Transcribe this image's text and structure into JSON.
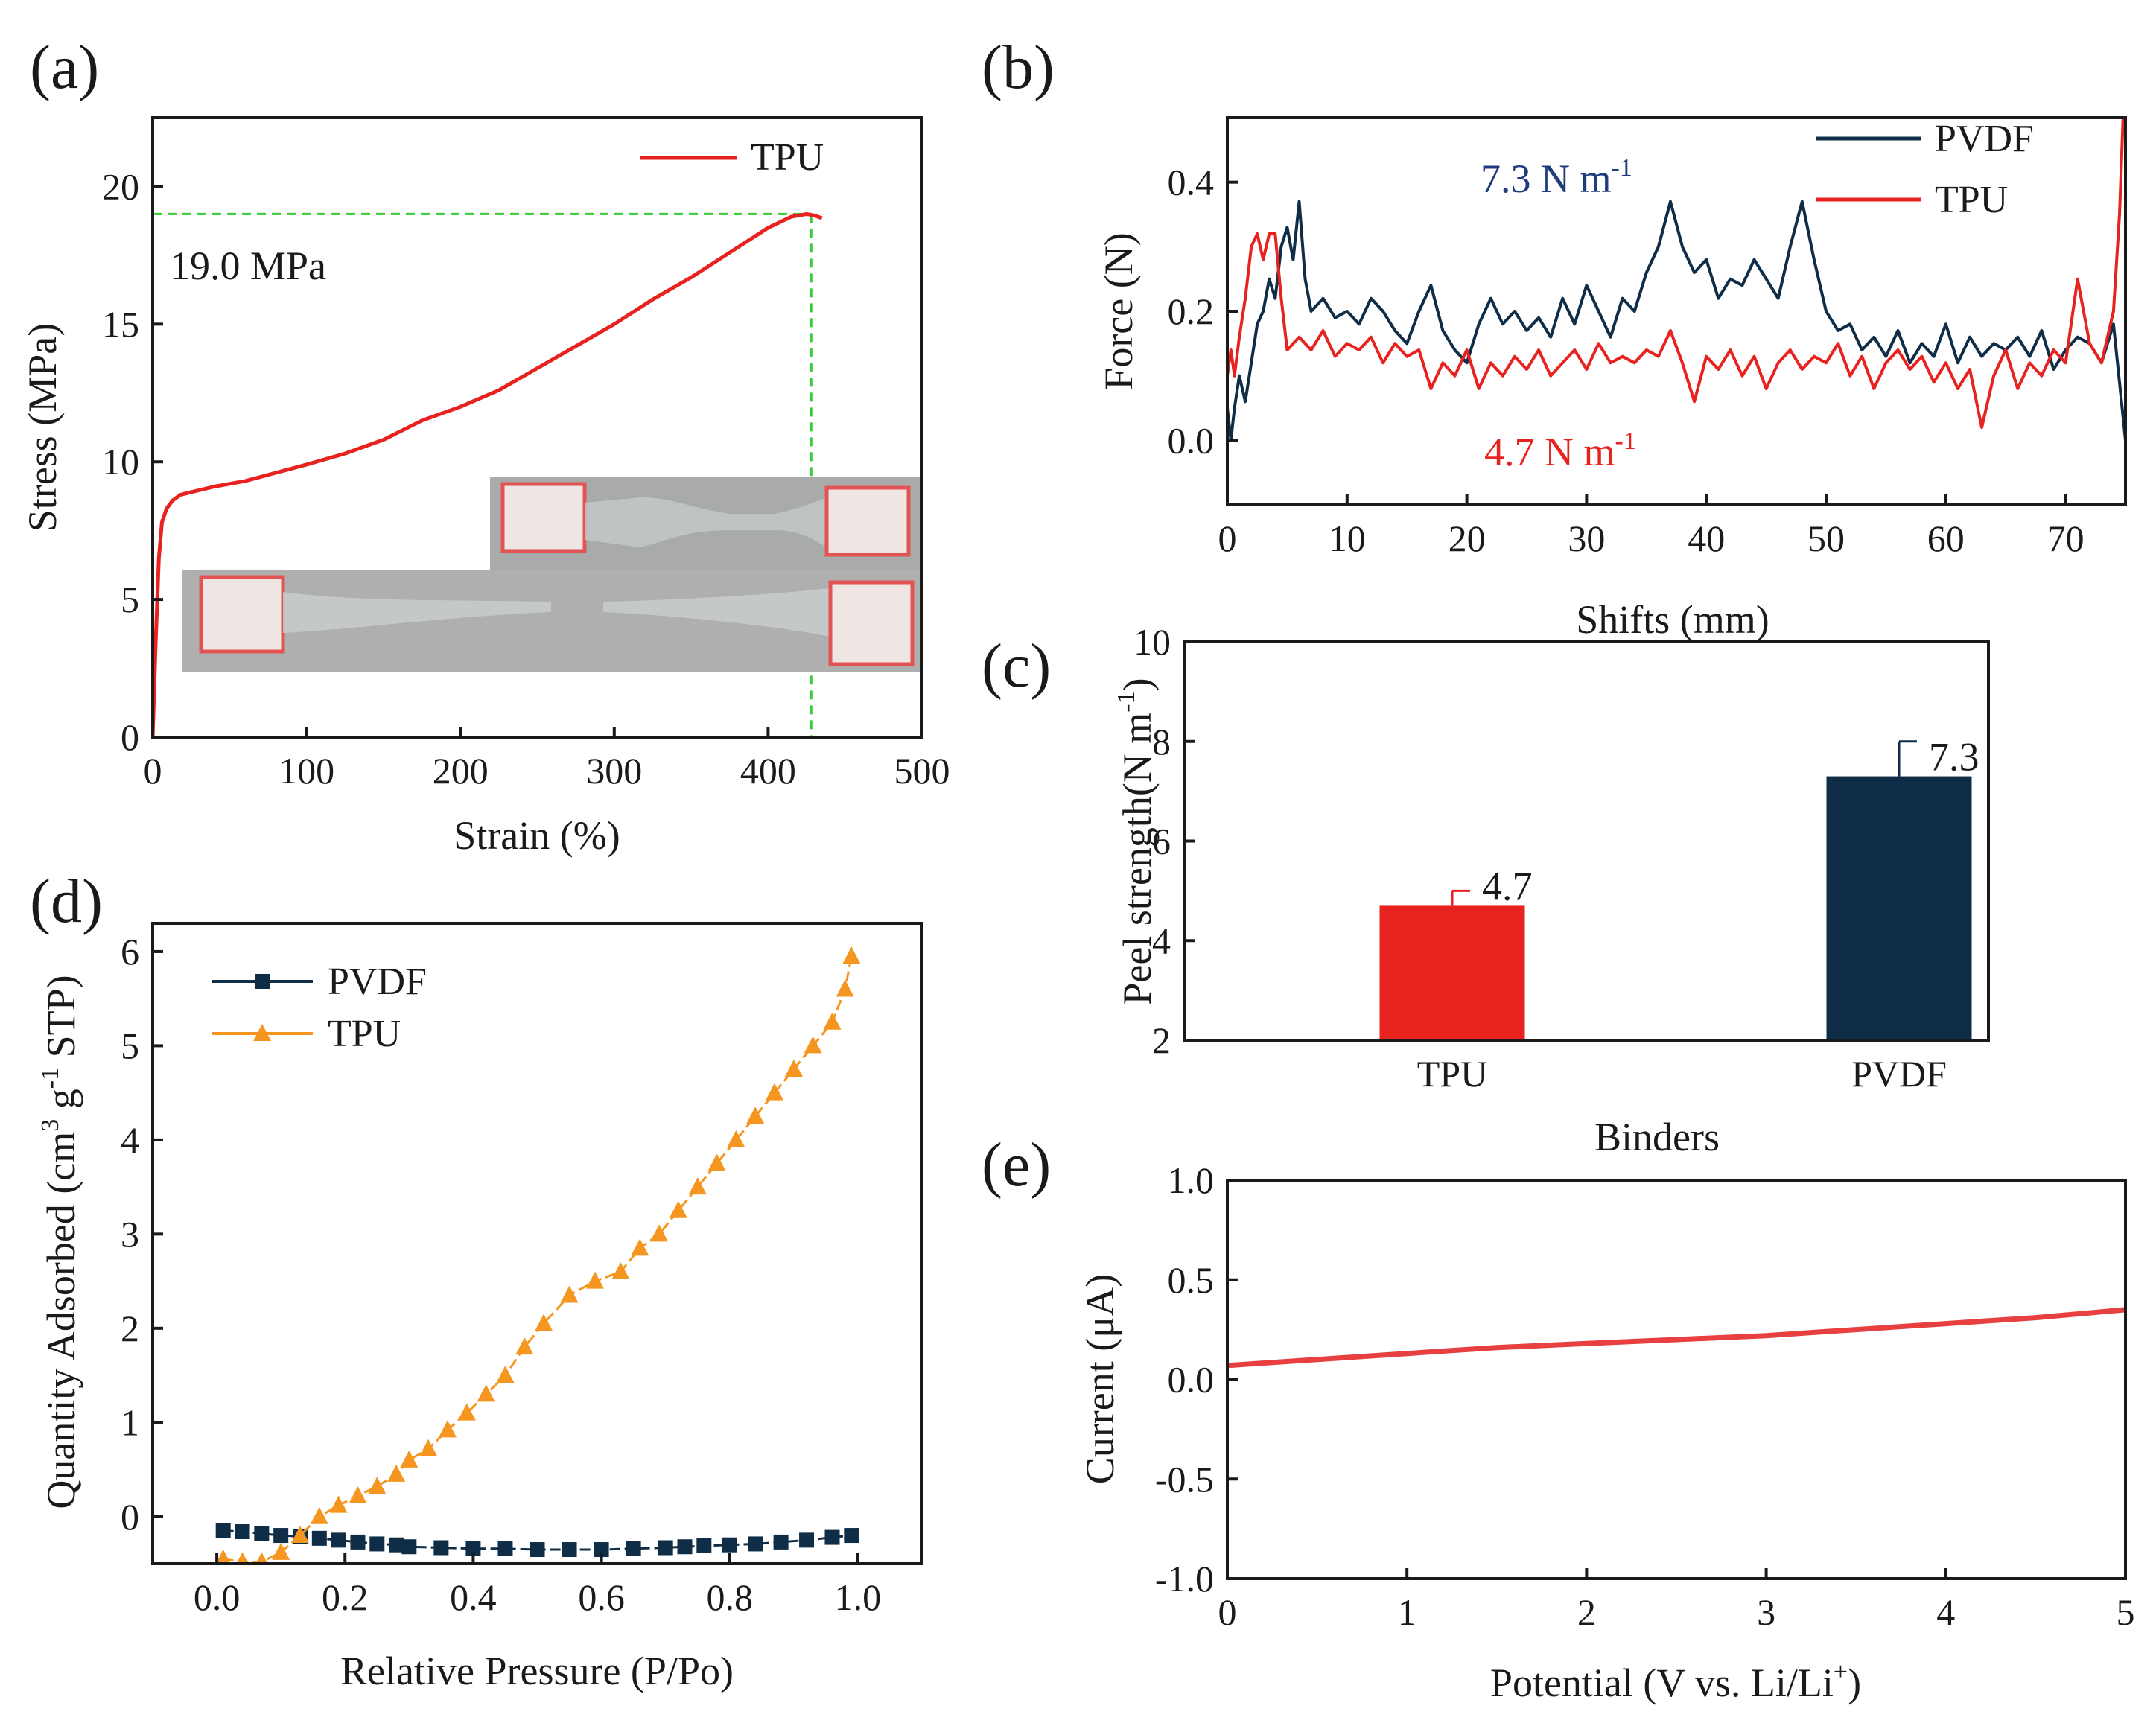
{
  "colors": {
    "red": "#e8231f",
    "navy": "#0f2d47",
    "orange": "#f4961f",
    "green": "#33cc33",
    "axis": "#1a1a1a"
  },
  "chart_data": [
    {
      "id": "a",
      "panel_label": "(a)",
      "type": "line",
      "xlabel": "Strain (%)",
      "ylabel": "Stress (MPa)",
      "xlim": [
        0,
        500
      ],
      "ylim": [
        0,
        22.5
      ],
      "xticks": [
        "0",
        "100",
        "200",
        "300",
        "400",
        "500"
      ],
      "yticks": [
        "0",
        "5",
        "10",
        "15",
        "20"
      ],
      "annotation": "19.0 MPa",
      "max_point": {
        "x": 428,
        "y": 19.0
      },
      "legend": [
        "TPU"
      ],
      "inset": "photographs of TPU tensile specimen before and after fracture",
      "series": [
        {
          "name": "TPU",
          "x": [
            0,
            2,
            4,
            6,
            9,
            13,
            18,
            25,
            40,
            60,
            80,
            100,
            125,
            150,
            175,
            200,
            225,
            250,
            275,
            300,
            325,
            350,
            375,
            400,
            415,
            425,
            430,
            435
          ],
          "y": [
            0,
            3.5,
            6.5,
            7.8,
            8.3,
            8.6,
            8.8,
            8.9,
            9.1,
            9.3,
            9.6,
            9.9,
            10.3,
            10.8,
            11.5,
            12.0,
            12.6,
            13.4,
            14.2,
            15.0,
            15.9,
            16.7,
            17.6,
            18.5,
            18.9,
            19.0,
            18.95,
            18.85
          ]
        }
      ]
    },
    {
      "id": "b",
      "panel_label": "(b)",
      "type": "line",
      "xlabel": "Shifts (mm)",
      "ylabel": "Force (N)",
      "xlim": [
        0,
        75
      ],
      "ylim": [
        -0.1,
        0.5
      ],
      "xticks": [
        "0",
        "10",
        "20",
        "30",
        "40",
        "50",
        "60",
        "70"
      ],
      "yticks": [
        "0.0",
        "0.2",
        "0.4"
      ],
      "legend": [
        "PVDF",
        "TPU"
      ],
      "annotations": [
        {
          "text": "7.3 N m",
          "sup": "-1",
          "series": "PVDF"
        },
        {
          "text": "4.7 N m",
          "sup": "-1",
          "series": "TPU"
        }
      ],
      "series": [
        {
          "name": "PVDF",
          "x": [
            0,
            0.3,
            0.6,
            1,
            1.5,
            2,
            2.5,
            3,
            3.5,
            4,
            4.5,
            5,
            5.5,
            6,
            6.5,
            7,
            8,
            9,
            10,
            11,
            12,
            13,
            14,
            15,
            16,
            17,
            18,
            19,
            20,
            21,
            22,
            23,
            24,
            25,
            26,
            27,
            28,
            29,
            30,
            31,
            32,
            33,
            34,
            35,
            36,
            37,
            38,
            39,
            40,
            41,
            42,
            43,
            44,
            45,
            46,
            47,
            48,
            49,
            50,
            51,
            52,
            53,
            54,
            55,
            56,
            57,
            58,
            59,
            60,
            61,
            62,
            63,
            64,
            65,
            66,
            67,
            68,
            69,
            70,
            71,
            72,
            73,
            74,
            75
          ],
          "y": [
            0.05,
            0.0,
            0.05,
            0.1,
            0.06,
            0.12,
            0.18,
            0.2,
            0.25,
            0.22,
            0.3,
            0.33,
            0.28,
            0.37,
            0.25,
            0.2,
            0.22,
            0.19,
            0.2,
            0.18,
            0.22,
            0.2,
            0.17,
            0.15,
            0.2,
            0.24,
            0.17,
            0.14,
            0.12,
            0.18,
            0.22,
            0.18,
            0.2,
            0.17,
            0.19,
            0.16,
            0.22,
            0.18,
            0.24,
            0.2,
            0.16,
            0.22,
            0.2,
            0.26,
            0.3,
            0.37,
            0.3,
            0.26,
            0.28,
            0.22,
            0.25,
            0.24,
            0.28,
            0.25,
            0.22,
            0.3,
            0.37,
            0.28,
            0.2,
            0.17,
            0.18,
            0.14,
            0.16,
            0.13,
            0.17,
            0.12,
            0.15,
            0.13,
            0.18,
            0.12,
            0.16,
            0.13,
            0.15,
            0.14,
            0.16,
            0.13,
            0.17,
            0.11,
            0.14,
            0.16,
            0.15,
            0.12,
            0.18,
            0.0
          ]
        },
        {
          "name": "TPU",
          "x": [
            0,
            0.3,
            0.6,
            1,
            1.5,
            2,
            2.5,
            3,
            3.5,
            4,
            4.5,
            5,
            6,
            7,
            8,
            9,
            10,
            11,
            12,
            13,
            14,
            15,
            16,
            17,
            18,
            19,
            20,
            21,
            22,
            23,
            24,
            25,
            26,
            27,
            28,
            29,
            30,
            31,
            32,
            33,
            34,
            35,
            36,
            37,
            38,
            39,
            40,
            41,
            42,
            43,
            44,
            45,
            46,
            47,
            48,
            49,
            50,
            51,
            52,
            53,
            54,
            55,
            56,
            57,
            58,
            59,
            60,
            61,
            62,
            63,
            64,
            65,
            66,
            67,
            68,
            69,
            70,
            71,
            72,
            73,
            74,
            74.5,
            74.8
          ],
          "y": [
            0.1,
            0.14,
            0.1,
            0.16,
            0.22,
            0.3,
            0.32,
            0.28,
            0.32,
            0.32,
            0.22,
            0.14,
            0.16,
            0.14,
            0.17,
            0.13,
            0.15,
            0.14,
            0.16,
            0.12,
            0.15,
            0.13,
            0.14,
            0.08,
            0.12,
            0.1,
            0.14,
            0.08,
            0.12,
            0.1,
            0.13,
            0.11,
            0.14,
            0.1,
            0.12,
            0.14,
            0.11,
            0.15,
            0.12,
            0.13,
            0.12,
            0.14,
            0.13,
            0.17,
            0.12,
            0.06,
            0.13,
            0.11,
            0.14,
            0.1,
            0.13,
            0.08,
            0.12,
            0.14,
            0.11,
            0.13,
            0.12,
            0.15,
            0.1,
            0.13,
            0.08,
            0.12,
            0.14,
            0.11,
            0.13,
            0.09,
            0.12,
            0.08,
            0.11,
            0.02,
            0.1,
            0.14,
            0.08,
            0.12,
            0.1,
            0.14,
            0.12,
            0.25,
            0.15,
            0.12,
            0.2,
            0.35,
            0.5
          ]
        }
      ]
    },
    {
      "id": "c",
      "panel_label": "(c)",
      "type": "bar",
      "xlabel": "Binders",
      "ylabel": "Peel strength(N m",
      "ylabel_sup": "-1",
      "ylabel_end": ")",
      "ylim": [
        2,
        10
      ],
      "yticks": [
        "2",
        "4",
        "6",
        "8",
        "10"
      ],
      "categories": [
        "TPU",
        "PVDF"
      ],
      "values": [
        4.7,
        7.3
      ],
      "errors": [
        0.3,
        0.7
      ],
      "value_labels": [
        "4.7",
        "7.3"
      ]
    },
    {
      "id": "d",
      "panel_label": "(d)",
      "type": "line",
      "xlabel": "Relative Pressure (P/Po)",
      "ylabel": "Quantity Adsorbed (cm",
      "ylabel_parts": [
        "3",
        " g",
        "-1",
        " STP)"
      ],
      "xlim": [
        -0.1,
        1.1
      ],
      "ylim": [
        -0.5,
        6.3
      ],
      "xticks": [
        "0.0",
        "0.2",
        "0.4",
        "0.6",
        "0.8",
        "1.0"
      ],
      "yticks": [
        "0",
        "1",
        "2",
        "3",
        "4",
        "5",
        "6"
      ],
      "legend": [
        "PVDF",
        "TPU"
      ],
      "series": [
        {
          "name": "PVDF",
          "marker": "square",
          "x": [
            0.01,
            0.04,
            0.07,
            0.1,
            0.13,
            0.16,
            0.19,
            0.22,
            0.25,
            0.28,
            0.3,
            0.35,
            0.4,
            0.45,
            0.5,
            0.55,
            0.6,
            0.65,
            0.7,
            0.73,
            0.76,
            0.8,
            0.84,
            0.88,
            0.92,
            0.96,
            0.99
          ],
          "y": [
            -0.15,
            -0.16,
            -0.18,
            -0.2,
            -0.21,
            -0.23,
            -0.25,
            -0.27,
            -0.29,
            -0.3,
            -0.32,
            -0.33,
            -0.34,
            -0.34,
            -0.35,
            -0.35,
            -0.35,
            -0.34,
            -0.33,
            -0.32,
            -0.31,
            -0.3,
            -0.29,
            -0.27,
            -0.25,
            -0.22,
            -0.2
          ]
        },
        {
          "name": "TPU",
          "marker": "triangle",
          "x": [
            0.01,
            0.04,
            0.07,
            0.1,
            0.13,
            0.16,
            0.19,
            0.22,
            0.25,
            0.28,
            0.3,
            0.33,
            0.36,
            0.39,
            0.42,
            0.45,
            0.48,
            0.51,
            0.55,
            0.59,
            0.63,
            0.66,
            0.69,
            0.72,
            0.75,
            0.78,
            0.81,
            0.84,
            0.87,
            0.9,
            0.93,
            0.96,
            0.98,
            0.99
          ],
          "y": [
            -0.45,
            -0.48,
            -0.48,
            -0.38,
            -0.2,
            0.0,
            0.12,
            0.22,
            0.32,
            0.45,
            0.6,
            0.72,
            0.92,
            1.1,
            1.3,
            1.5,
            1.8,
            2.05,
            2.35,
            2.5,
            2.6,
            2.85,
            3.0,
            3.25,
            3.5,
            3.75,
            4.0,
            4.25,
            4.5,
            4.75,
            5.0,
            5.25,
            5.6,
            5.95
          ]
        }
      ]
    },
    {
      "id": "e",
      "panel_label": "(e)",
      "type": "line",
      "xlabel": "Potential (V vs. Li/Li",
      "xlabel_sup": "+",
      "xlabel_end": ")",
      "ylabel": "Current (μA)",
      "xlim": [
        0,
        5
      ],
      "ylim": [
        -1.0,
        1.0
      ],
      "xticks": [
        "0",
        "1",
        "2",
        "3",
        "4",
        "5"
      ],
      "yticks": [
        "-1.0",
        "-0.5",
        "0.0",
        "0.5",
        "1.0"
      ],
      "series": [
        {
          "name": "TPU",
          "x": [
            0,
            0.5,
            1,
            1.5,
            2,
            2.5,
            3,
            3.5,
            4,
            4.5,
            5
          ],
          "y": [
            0.07,
            0.1,
            0.13,
            0.16,
            0.18,
            0.2,
            0.22,
            0.25,
            0.28,
            0.31,
            0.35
          ]
        }
      ]
    }
  ]
}
